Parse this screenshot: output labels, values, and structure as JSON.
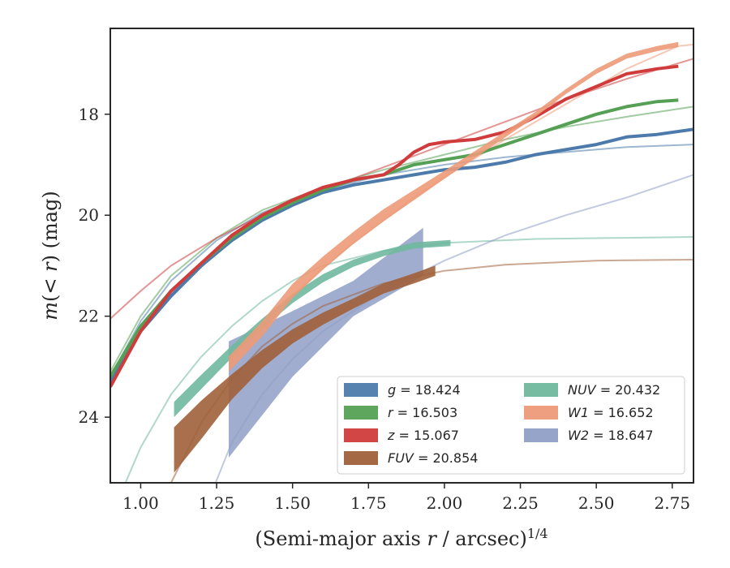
{
  "chart_data": {
    "type": "line",
    "xlabel": "(Semi-major axis r / arcsec)^1/4",
    "ylabel": "m(< r) (mag)",
    "xlim": [
      0.9,
      2.82
    ],
    "ylim": [
      25.3,
      16.3
    ],
    "y_inverted": true,
    "grid": false,
    "legend_position": "lower-right",
    "x_ticks": [
      "1.00",
      "1.25",
      "1.50",
      "1.75",
      "2.00",
      "2.25",
      "2.50",
      "2.75"
    ],
    "y_ticks": [
      "18",
      "20",
      "22",
      "24"
    ],
    "series": [
      {
        "name": "g = 18.424",
        "legend_var": "g",
        "legend_val": "18.424",
        "color": "#4c7bab",
        "profile": [
          [
            0.9,
            23.3
          ],
          [
            1.0,
            22.3
          ],
          [
            1.1,
            21.6
          ],
          [
            1.2,
            21.0
          ],
          [
            1.3,
            20.5
          ],
          [
            1.4,
            20.1
          ],
          [
            1.5,
            19.8
          ],
          [
            1.6,
            19.55
          ],
          [
            1.7,
            19.4
          ],
          [
            1.8,
            19.3
          ],
          [
            1.9,
            19.2
          ],
          [
            2.0,
            19.1
          ],
          [
            2.1,
            19.05
          ],
          [
            2.2,
            18.95
          ],
          [
            2.3,
            18.8
          ],
          [
            2.4,
            18.7
          ],
          [
            2.5,
            18.6
          ],
          [
            2.6,
            18.45
          ],
          [
            2.7,
            18.4
          ],
          [
            2.82,
            18.3
          ]
        ],
        "model": [
          [
            0.9,
            23.2
          ],
          [
            1.0,
            22.1
          ],
          [
            1.1,
            21.3
          ],
          [
            1.25,
            20.5
          ],
          [
            1.4,
            19.95
          ],
          [
            1.6,
            19.5
          ],
          [
            1.8,
            19.2
          ],
          [
            2.0,
            19.0
          ],
          [
            2.2,
            18.85
          ],
          [
            2.4,
            18.75
          ],
          [
            2.6,
            18.65
          ],
          [
            2.82,
            18.6
          ]
        ]
      },
      {
        "name": "r = 16.503",
        "legend_var": "r",
        "legend_val": "16.503",
        "color": "#55a055",
        "profile": [
          [
            0.9,
            23.2
          ],
          [
            1.0,
            22.2
          ],
          [
            1.1,
            21.5
          ],
          [
            1.2,
            20.95
          ],
          [
            1.3,
            20.45
          ],
          [
            1.4,
            20.05
          ],
          [
            1.5,
            19.75
          ],
          [
            1.6,
            19.5
          ],
          [
            1.7,
            19.3
          ],
          [
            1.8,
            19.2
          ],
          [
            1.9,
            19.0
          ],
          [
            2.0,
            18.9
          ],
          [
            2.1,
            18.8
          ],
          [
            2.2,
            18.6
          ],
          [
            2.3,
            18.4
          ],
          [
            2.4,
            18.2
          ],
          [
            2.5,
            18.0
          ],
          [
            2.6,
            17.85
          ],
          [
            2.7,
            17.75
          ],
          [
            2.77,
            17.72
          ]
        ],
        "model": [
          [
            0.9,
            23.1
          ],
          [
            1.0,
            22.0
          ],
          [
            1.1,
            21.2
          ],
          [
            1.25,
            20.45
          ],
          [
            1.4,
            19.9
          ],
          [
            1.6,
            19.45
          ],
          [
            1.8,
            19.1
          ],
          [
            2.0,
            18.8
          ],
          [
            2.2,
            18.5
          ],
          [
            2.4,
            18.25
          ],
          [
            2.6,
            18.05
          ],
          [
            2.82,
            17.85
          ]
        ]
      },
      {
        "name": "z = 15.067",
        "legend_var": "z",
        "legend_val": "15.067",
        "color": "#d03c3c",
        "profile": [
          [
            0.9,
            23.4
          ],
          [
            1.0,
            22.3
          ],
          [
            1.1,
            21.5
          ],
          [
            1.2,
            20.95
          ],
          [
            1.3,
            20.4
          ],
          [
            1.4,
            20.0
          ],
          [
            1.5,
            19.7
          ],
          [
            1.6,
            19.45
          ],
          [
            1.7,
            19.3
          ],
          [
            1.8,
            19.2
          ],
          [
            1.85,
            19.0
          ],
          [
            1.9,
            18.75
          ],
          [
            1.95,
            18.6
          ],
          [
            2.0,
            18.55
          ],
          [
            2.1,
            18.5
          ],
          [
            2.2,
            18.35
          ],
          [
            2.3,
            18.05
          ],
          [
            2.4,
            17.7
          ],
          [
            2.5,
            17.45
          ],
          [
            2.6,
            17.2
          ],
          [
            2.7,
            17.1
          ],
          [
            2.77,
            17.05
          ]
        ],
        "model": [
          [
            0.9,
            22.05
          ],
          [
            1.0,
            21.5
          ],
          [
            1.1,
            21.0
          ],
          [
            1.25,
            20.45
          ],
          [
            1.4,
            20.0
          ],
          [
            1.6,
            19.5
          ],
          [
            1.8,
            19.05
          ],
          [
            2.0,
            18.6
          ],
          [
            2.2,
            18.15
          ],
          [
            2.4,
            17.7
          ],
          [
            2.6,
            17.3
          ],
          [
            2.82,
            16.9
          ]
        ]
      },
      {
        "name": "FUV = 20.854",
        "legend_var": "FUV",
        "legend_val": "20.854",
        "color": "#a0603a",
        "profile": [
          [
            1.11,
            24.65
          ],
          [
            1.2,
            24.05
          ],
          [
            1.3,
            23.4
          ],
          [
            1.4,
            22.85
          ],
          [
            1.5,
            22.4
          ],
          [
            1.6,
            22.05
          ],
          [
            1.7,
            21.75
          ],
          [
            1.8,
            21.45
          ],
          [
            1.9,
            21.25
          ],
          [
            1.97,
            21.1
          ]
        ],
        "profile_err": [
          [
            1.11,
            0.45
          ],
          [
            1.2,
            0.38
          ],
          [
            1.3,
            0.25
          ],
          [
            1.4,
            0.18
          ],
          [
            1.5,
            0.14
          ],
          [
            1.6,
            0.12
          ],
          [
            1.7,
            0.1
          ],
          [
            1.8,
            0.1
          ],
          [
            1.9,
            0.1
          ],
          [
            1.97,
            0.1
          ]
        ],
        "model": [
          [
            1.0,
            26.5
          ],
          [
            1.1,
            25.3
          ],
          [
            1.2,
            24.1
          ],
          [
            1.3,
            23.25
          ],
          [
            1.4,
            22.6
          ],
          [
            1.5,
            22.15
          ],
          [
            1.6,
            21.8
          ],
          [
            1.8,
            21.35
          ],
          [
            2.0,
            21.1
          ],
          [
            2.2,
            20.98
          ],
          [
            2.5,
            20.9
          ],
          [
            2.82,
            20.88
          ]
        ]
      },
      {
        "name": "NUV = 20.432",
        "legend_var": "NUV",
        "legend_val": "20.432",
        "color": "#6fb89e",
        "profile": [
          [
            1.11,
            23.85
          ],
          [
            1.2,
            23.3
          ],
          [
            1.3,
            22.7
          ],
          [
            1.4,
            22.15
          ],
          [
            1.5,
            21.65
          ],
          [
            1.6,
            21.25
          ],
          [
            1.7,
            20.95
          ],
          [
            1.8,
            20.75
          ],
          [
            1.9,
            20.6
          ],
          [
            2.02,
            20.55
          ]
        ],
        "profile_err": [
          [
            1.11,
            0.15
          ],
          [
            1.2,
            0.14
          ],
          [
            1.3,
            0.12
          ],
          [
            1.4,
            0.1
          ],
          [
            1.5,
            0.09
          ],
          [
            1.6,
            0.08
          ],
          [
            1.7,
            0.07
          ],
          [
            1.8,
            0.06
          ],
          [
            1.9,
            0.06
          ],
          [
            2.02,
            0.06
          ]
        ],
        "model": [
          [
            0.9,
            26.0
          ],
          [
            1.0,
            24.6
          ],
          [
            1.1,
            23.55
          ],
          [
            1.2,
            22.8
          ],
          [
            1.3,
            22.2
          ],
          [
            1.4,
            21.7
          ],
          [
            1.5,
            21.3
          ],
          [
            1.6,
            21.0
          ],
          [
            1.8,
            20.7
          ],
          [
            2.0,
            20.55
          ],
          [
            2.3,
            20.47
          ],
          [
            2.82,
            20.43
          ]
        ]
      },
      {
        "name": "W1 = 16.652",
        "legend_var": "W1",
        "legend_val": "16.652",
        "color": "#ec9a78",
        "profile": [
          [
            1.29,
            22.95
          ],
          [
            1.4,
            22.25
          ],
          [
            1.5,
            21.5
          ],
          [
            1.6,
            20.95
          ],
          [
            1.7,
            20.45
          ],
          [
            1.8,
            20.0
          ],
          [
            1.9,
            19.6
          ],
          [
            2.0,
            19.2
          ],
          [
            2.1,
            18.8
          ],
          [
            2.2,
            18.4
          ],
          [
            2.3,
            18.0
          ],
          [
            2.4,
            17.55
          ],
          [
            2.5,
            17.15
          ],
          [
            2.6,
            16.85
          ],
          [
            2.7,
            16.7
          ],
          [
            2.77,
            16.62
          ]
        ],
        "profile_err": [
          [
            1.29,
            0.15
          ],
          [
            1.4,
            0.15
          ],
          [
            1.5,
            0.14
          ],
          [
            1.6,
            0.13
          ],
          [
            1.7,
            0.12
          ],
          [
            1.8,
            0.12
          ],
          [
            1.9,
            0.1
          ],
          [
            2.0,
            0.08
          ],
          [
            2.1,
            0.07
          ],
          [
            2.2,
            0.06
          ],
          [
            2.3,
            0.05
          ],
          [
            2.4,
            0.05
          ],
          [
            2.5,
            0.05
          ],
          [
            2.6,
            0.05
          ],
          [
            2.7,
            0.05
          ],
          [
            2.77,
            0.05
          ]
        ],
        "model": [
          [
            1.29,
            22.9
          ],
          [
            1.4,
            22.2
          ],
          [
            1.5,
            21.6
          ],
          [
            1.6,
            21.05
          ],
          [
            1.7,
            20.55
          ],
          [
            1.8,
            20.1
          ],
          [
            1.9,
            19.65
          ],
          [
            2.0,
            19.25
          ],
          [
            2.2,
            18.5
          ],
          [
            2.4,
            17.8
          ],
          [
            2.6,
            17.1
          ],
          [
            2.77,
            16.65
          ],
          [
            2.82,
            16.62
          ]
        ]
      },
      {
        "name": "W2 = 18.647",
        "legend_var": "W2",
        "legend_val": "18.647",
        "color": "#8f9fc5",
        "band": [
          [
            1.29,
            22.5,
            24.8
          ],
          [
            1.5,
            21.9,
            23.2
          ],
          [
            1.7,
            21.3,
            22.0
          ],
          [
            1.93,
            20.25,
            21.2
          ]
        ],
        "model": [
          [
            1.2,
            26.0
          ],
          [
            1.3,
            24.5
          ],
          [
            1.4,
            23.55
          ],
          [
            1.5,
            22.85
          ],
          [
            1.6,
            22.3
          ],
          [
            1.8,
            21.5
          ],
          [
            2.0,
            20.9
          ],
          [
            2.2,
            20.4
          ],
          [
            2.4,
            20.0
          ],
          [
            2.6,
            19.65
          ],
          [
            2.82,
            19.2
          ]
        ]
      }
    ]
  }
}
